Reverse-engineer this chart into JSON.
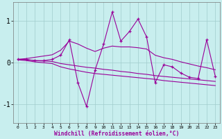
{
  "xlabel": "Windchill (Refroidissement éolien,°C)",
  "x": [
    0,
    1,
    2,
    3,
    4,
    5,
    6,
    7,
    8,
    9,
    10,
    11,
    12,
    13,
    14,
    15,
    16,
    17,
    18,
    19,
    20,
    21,
    22,
    23
  ],
  "y_main": [
    0.08,
    0.08,
    0.05,
    0.05,
    0.08,
    0.18,
    0.55,
    -0.48,
    -1.05,
    -0.18,
    0.45,
    1.22,
    0.52,
    0.75,
    1.05,
    0.62,
    -0.48,
    -0.05,
    -0.1,
    -0.25,
    -0.35,
    -0.38,
    0.55,
    -0.33
  ],
  "y_trend_upper": [
    0.08,
    0.1,
    0.13,
    0.16,
    0.19,
    0.3,
    0.52,
    0.45,
    0.35,
    0.27,
    0.35,
    0.4,
    0.38,
    0.38,
    0.36,
    0.33,
    0.18,
    0.12,
    0.08,
    0.02,
    -0.03,
    -0.08,
    -0.12,
    -0.17
  ],
  "y_trend_mid": [
    0.08,
    0.07,
    0.05,
    0.04,
    0.03,
    -0.02,
    -0.05,
    -0.08,
    -0.11,
    -0.13,
    -0.16,
    -0.18,
    -0.21,
    -0.23,
    -0.26,
    -0.28,
    -0.31,
    -0.33,
    -0.35,
    -0.37,
    -0.39,
    -0.41,
    -0.43,
    -0.45
  ],
  "y_trend_lower": [
    0.07,
    0.05,
    0.02,
    0.0,
    -0.02,
    -0.1,
    -0.15,
    -0.19,
    -0.23,
    -0.26,
    -0.28,
    -0.3,
    -0.32,
    -0.34,
    -0.36,
    -0.38,
    -0.4,
    -0.43,
    -0.45,
    -0.47,
    -0.49,
    -0.51,
    -0.53,
    -0.55
  ],
  "line_color": "#990099",
  "bg_color": "#c8eeee",
  "grid_color": "#a0cccc",
  "ylim": [
    -1.45,
    1.45
  ],
  "xlim": [
    -0.5,
    23.5
  ],
  "yticks": [
    -1,
    0,
    1
  ],
  "xticks": [
    0,
    1,
    2,
    3,
    4,
    5,
    6,
    7,
    8,
    9,
    10,
    11,
    12,
    13,
    14,
    15,
    16,
    17,
    18,
    19,
    20,
    21,
    22,
    23
  ],
  "figwidth": 3.2,
  "figheight": 2.0,
  "dpi": 100
}
